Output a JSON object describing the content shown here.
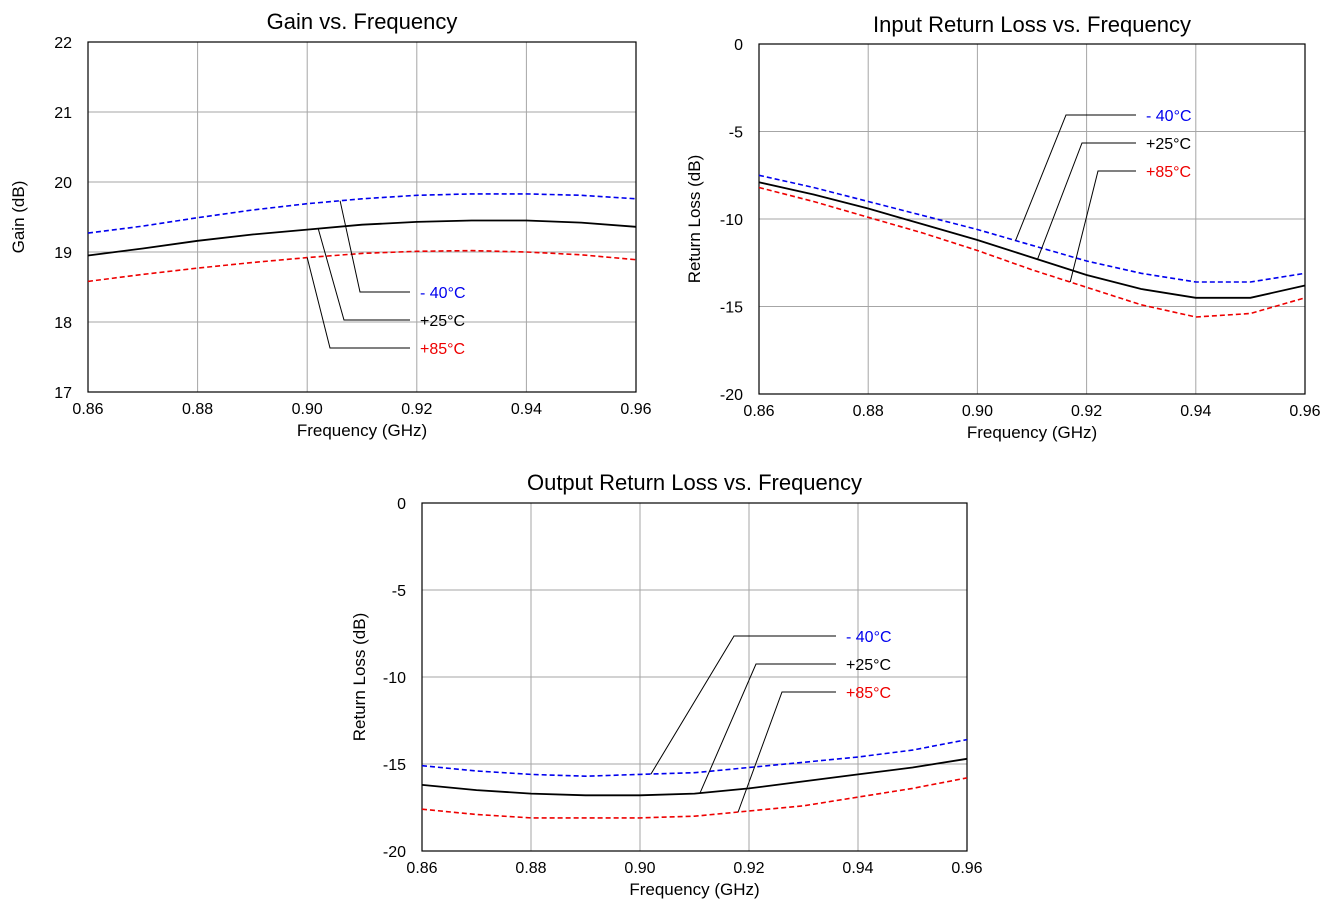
{
  "colors": {
    "m40": "#0000ee",
    "p25": "#000000",
    "p85": "#ee0000",
    "grid": "#a6a6a6"
  },
  "chart_data": [
    {
      "type": "line",
      "title": "Gain vs. Frequency",
      "xlabel": "Frequency (GHz)",
      "ylabel": "Gain (dB)",
      "xlim": [
        0.86,
        0.96
      ],
      "ylim": [
        17,
        22
      ],
      "xticks": [
        0.86,
        0.88,
        0.9,
        0.92,
        0.94,
        0.96
      ],
      "xtick_labels": [
        "0.86",
        "0.88",
        "0.90",
        "0.92",
        "0.94",
        "0.96"
      ],
      "yticks": [
        17,
        18,
        19,
        20,
        21,
        22
      ],
      "ytick_labels": [
        "17",
        "18",
        "19",
        "20",
        "21",
        "22"
      ],
      "grid": true,
      "series": [
        {
          "name": "- 40°C",
          "color": "#0000ee",
          "dash": true,
          "x": [
            0.86,
            0.87,
            0.88,
            0.89,
            0.9,
            0.91,
            0.92,
            0.93,
            0.94,
            0.95,
            0.96
          ],
          "y": [
            19.27,
            19.37,
            19.49,
            19.6,
            19.69,
            19.76,
            19.81,
            19.83,
            19.83,
            19.81,
            19.76
          ]
        },
        {
          "name": "+25°C",
          "color": "#000000",
          "dash": false,
          "x": [
            0.86,
            0.87,
            0.88,
            0.89,
            0.9,
            0.91,
            0.92,
            0.93,
            0.94,
            0.95,
            0.96
          ],
          "y": [
            18.95,
            19.05,
            19.16,
            19.25,
            19.32,
            19.39,
            19.43,
            19.45,
            19.45,
            19.42,
            19.36
          ]
        },
        {
          "name": "+85°C",
          "color": "#ee0000",
          "dash": true,
          "x": [
            0.86,
            0.87,
            0.88,
            0.89,
            0.9,
            0.91,
            0.92,
            0.93,
            0.94,
            0.95,
            0.96
          ],
          "y": [
            18.58,
            18.68,
            18.77,
            18.85,
            18.92,
            18.98,
            19.01,
            19.02,
            19.0,
            18.96,
            18.89
          ]
        }
      ]
    },
    {
      "type": "line",
      "title": "Input Return Loss vs. Frequency",
      "xlabel": "Frequency (GHz)",
      "ylabel": "Return Loss (dB)",
      "xlim": [
        0.86,
        0.96
      ],
      "ylim": [
        -20,
        0
      ],
      "xticks": [
        0.86,
        0.88,
        0.9,
        0.92,
        0.94,
        0.96
      ],
      "xtick_labels": [
        "0.86",
        "0.88",
        "0.90",
        "0.92",
        "0.94",
        "0.96"
      ],
      "yticks": [
        -20,
        -15,
        -10,
        -5,
        0
      ],
      "ytick_labels": [
        "-20",
        "-15",
        "-10",
        "-5",
        "0"
      ],
      "grid": true,
      "series": [
        {
          "name": "- 40°C",
          "color": "#0000ee",
          "dash": true,
          "x": [
            0.86,
            0.87,
            0.88,
            0.89,
            0.9,
            0.91,
            0.92,
            0.93,
            0.94,
            0.95,
            0.96
          ],
          "y": [
            -7.5,
            -8.2,
            -9.0,
            -9.8,
            -10.6,
            -11.5,
            -12.4,
            -13.1,
            -13.6,
            -13.6,
            -13.1
          ]
        },
        {
          "name": "+25°C",
          "color": "#000000",
          "dash": false,
          "x": [
            0.86,
            0.87,
            0.88,
            0.89,
            0.9,
            0.91,
            0.92,
            0.93,
            0.94,
            0.95,
            0.96
          ],
          "y": [
            -7.9,
            -8.6,
            -9.4,
            -10.3,
            -11.2,
            -12.2,
            -13.2,
            -14.0,
            -14.5,
            -14.5,
            -13.8
          ]
        },
        {
          "name": "+85°C",
          "color": "#ee0000",
          "dash": true,
          "x": [
            0.86,
            0.87,
            0.88,
            0.89,
            0.9,
            0.91,
            0.92,
            0.93,
            0.94,
            0.95,
            0.96
          ],
          "y": [
            -8.2,
            -9.0,
            -9.9,
            -10.8,
            -11.8,
            -12.9,
            -13.9,
            -14.9,
            -15.6,
            -15.4,
            -14.5
          ]
        }
      ]
    },
    {
      "type": "line",
      "title": "Output Return Loss vs. Frequency",
      "xlabel": "Frequency (GHz)",
      "ylabel": "Return Loss (dB)",
      "xlim": [
        0.86,
        0.96
      ],
      "ylim": [
        -20,
        0
      ],
      "xticks": [
        0.86,
        0.88,
        0.9,
        0.92,
        0.94,
        0.96
      ],
      "xtick_labels": [
        "0.86",
        "0.88",
        "0.90",
        "0.92",
        "0.94",
        "0.96"
      ],
      "yticks": [
        -20,
        -15,
        -10,
        -5,
        0
      ],
      "ytick_labels": [
        "-20",
        "-15",
        "-10",
        "-5",
        "0"
      ],
      "grid": true,
      "series": [
        {
          "name": "- 40°C",
          "color": "#0000ee",
          "dash": true,
          "x": [
            0.86,
            0.87,
            0.88,
            0.89,
            0.9,
            0.91,
            0.92,
            0.93,
            0.94,
            0.95,
            0.96
          ],
          "y": [
            -15.1,
            -15.4,
            -15.6,
            -15.7,
            -15.6,
            -15.5,
            -15.2,
            -14.9,
            -14.6,
            -14.2,
            -13.6
          ]
        },
        {
          "name": "+25°C",
          "color": "#000000",
          "dash": false,
          "x": [
            0.86,
            0.87,
            0.88,
            0.89,
            0.9,
            0.91,
            0.92,
            0.93,
            0.94,
            0.95,
            0.96
          ],
          "y": [
            -16.2,
            -16.5,
            -16.7,
            -16.8,
            -16.8,
            -16.7,
            -16.4,
            -16.0,
            -15.6,
            -15.2,
            -14.7
          ]
        },
        {
          "name": "+85°C",
          "color": "#ee0000",
          "dash": true,
          "x": [
            0.86,
            0.87,
            0.88,
            0.89,
            0.9,
            0.91,
            0.92,
            0.93,
            0.94,
            0.95,
            0.96
          ],
          "y": [
            -17.6,
            -17.9,
            -18.1,
            -18.1,
            -18.1,
            -18.0,
            -17.7,
            -17.4,
            -16.9,
            -16.4,
            -15.8
          ]
        }
      ]
    }
  ]
}
